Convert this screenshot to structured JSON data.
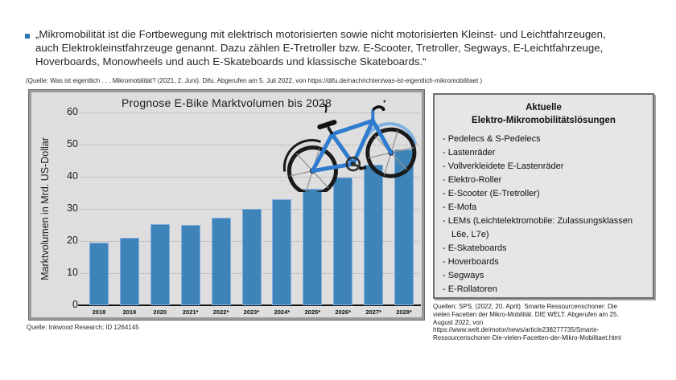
{
  "quote": {
    "bullet_color": "#2e75b6",
    "lines": [
      "„Mikromobilität ist die Fortbewegung mit elektrisch motorisierten sowie nicht motorisierten Kleinst- und Leichtfahrzeugen,",
      "auch Elektrokleinstfahrzeuge genannt. Dazu zählen E-Tretroller bzw. E-Scooter, Tretroller, Segways, E-Leichtfahrzeuge,",
      "Hoverboards, Monowheels und auch E-Skateboards und klassische Skateboards.“"
    ],
    "source": "(Quelle: Was ist eigentlich . . . Mikromobilität? (2021, 2. Juni). Difu. Abgerufen am 5. Juli 2022, von https://difu.de/nachrichten/was-ist-eigentlich-mikromobilitaet )"
  },
  "chart_data": {
    "type": "bar",
    "title": "Prognose E-Bike Marktvolumen  bis 2028",
    "ylabel": "Marktvolumen  in Mrd.  US-Dollar",
    "xlabel": "",
    "categories": [
      "2018",
      "2019",
      "2020",
      "2021*",
      "2022*",
      "2023*",
      "2024*",
      "2025*",
      "2026*",
      "2027*",
      "2028*"
    ],
    "values": [
      19.5,
      21.1,
      25.2,
      25.0,
      27.3,
      30.0,
      33.0,
      36.2,
      39.7,
      43.7,
      48.5
    ],
    "ylim": [
      0,
      60
    ],
    "ytick_step": 10,
    "grid": "horizontal-dotted",
    "legend": "none",
    "plot_bg": "#dedede",
    "bar_color": "#3e84b8",
    "bar_border_color": "#86aede",
    "source": "Quelle: Inkwood Research; ID 1264145"
  },
  "side_panel": {
    "background": "#e6e6e6",
    "title_lines": [
      "Aktuelle",
      "Elektro-Mikromobilitätslösungen"
    ],
    "items": [
      "Pedelecs & S-Pedelecs",
      "Lastenräder",
      "Vollverkleidete E-Lastenräder",
      "Elektro-Roller",
      "E-Scooter (E-Tretroller)",
      "E-Mofa",
      "LEMs (Leichtelektromobile: Zulassungsklassen L6e, L7e)",
      "E-Skateboards",
      "Hoverboards",
      "Segways",
      "E-Rollatoren"
    ]
  },
  "sources_right": {
    "lines": [
      "Quellen: SPS. (2022, 20. April). Smarte Ressourcenschoner: Die",
      "vielen Facetten der Mikro-Mobilität.  DIE WELT. Abgerufen am 25.",
      "August 2022, von",
      "https://www.welt.de/motor/news/article238277735/Smarte-",
      "Ressourcenschoner-Die-vielen-Facetten-der-Mikro-Mobilitaet.html"
    ]
  },
  "decor": {
    "bike_frame_color": "#2e7bd0",
    "bike_fender_front_color": "#7fb0e3"
  }
}
